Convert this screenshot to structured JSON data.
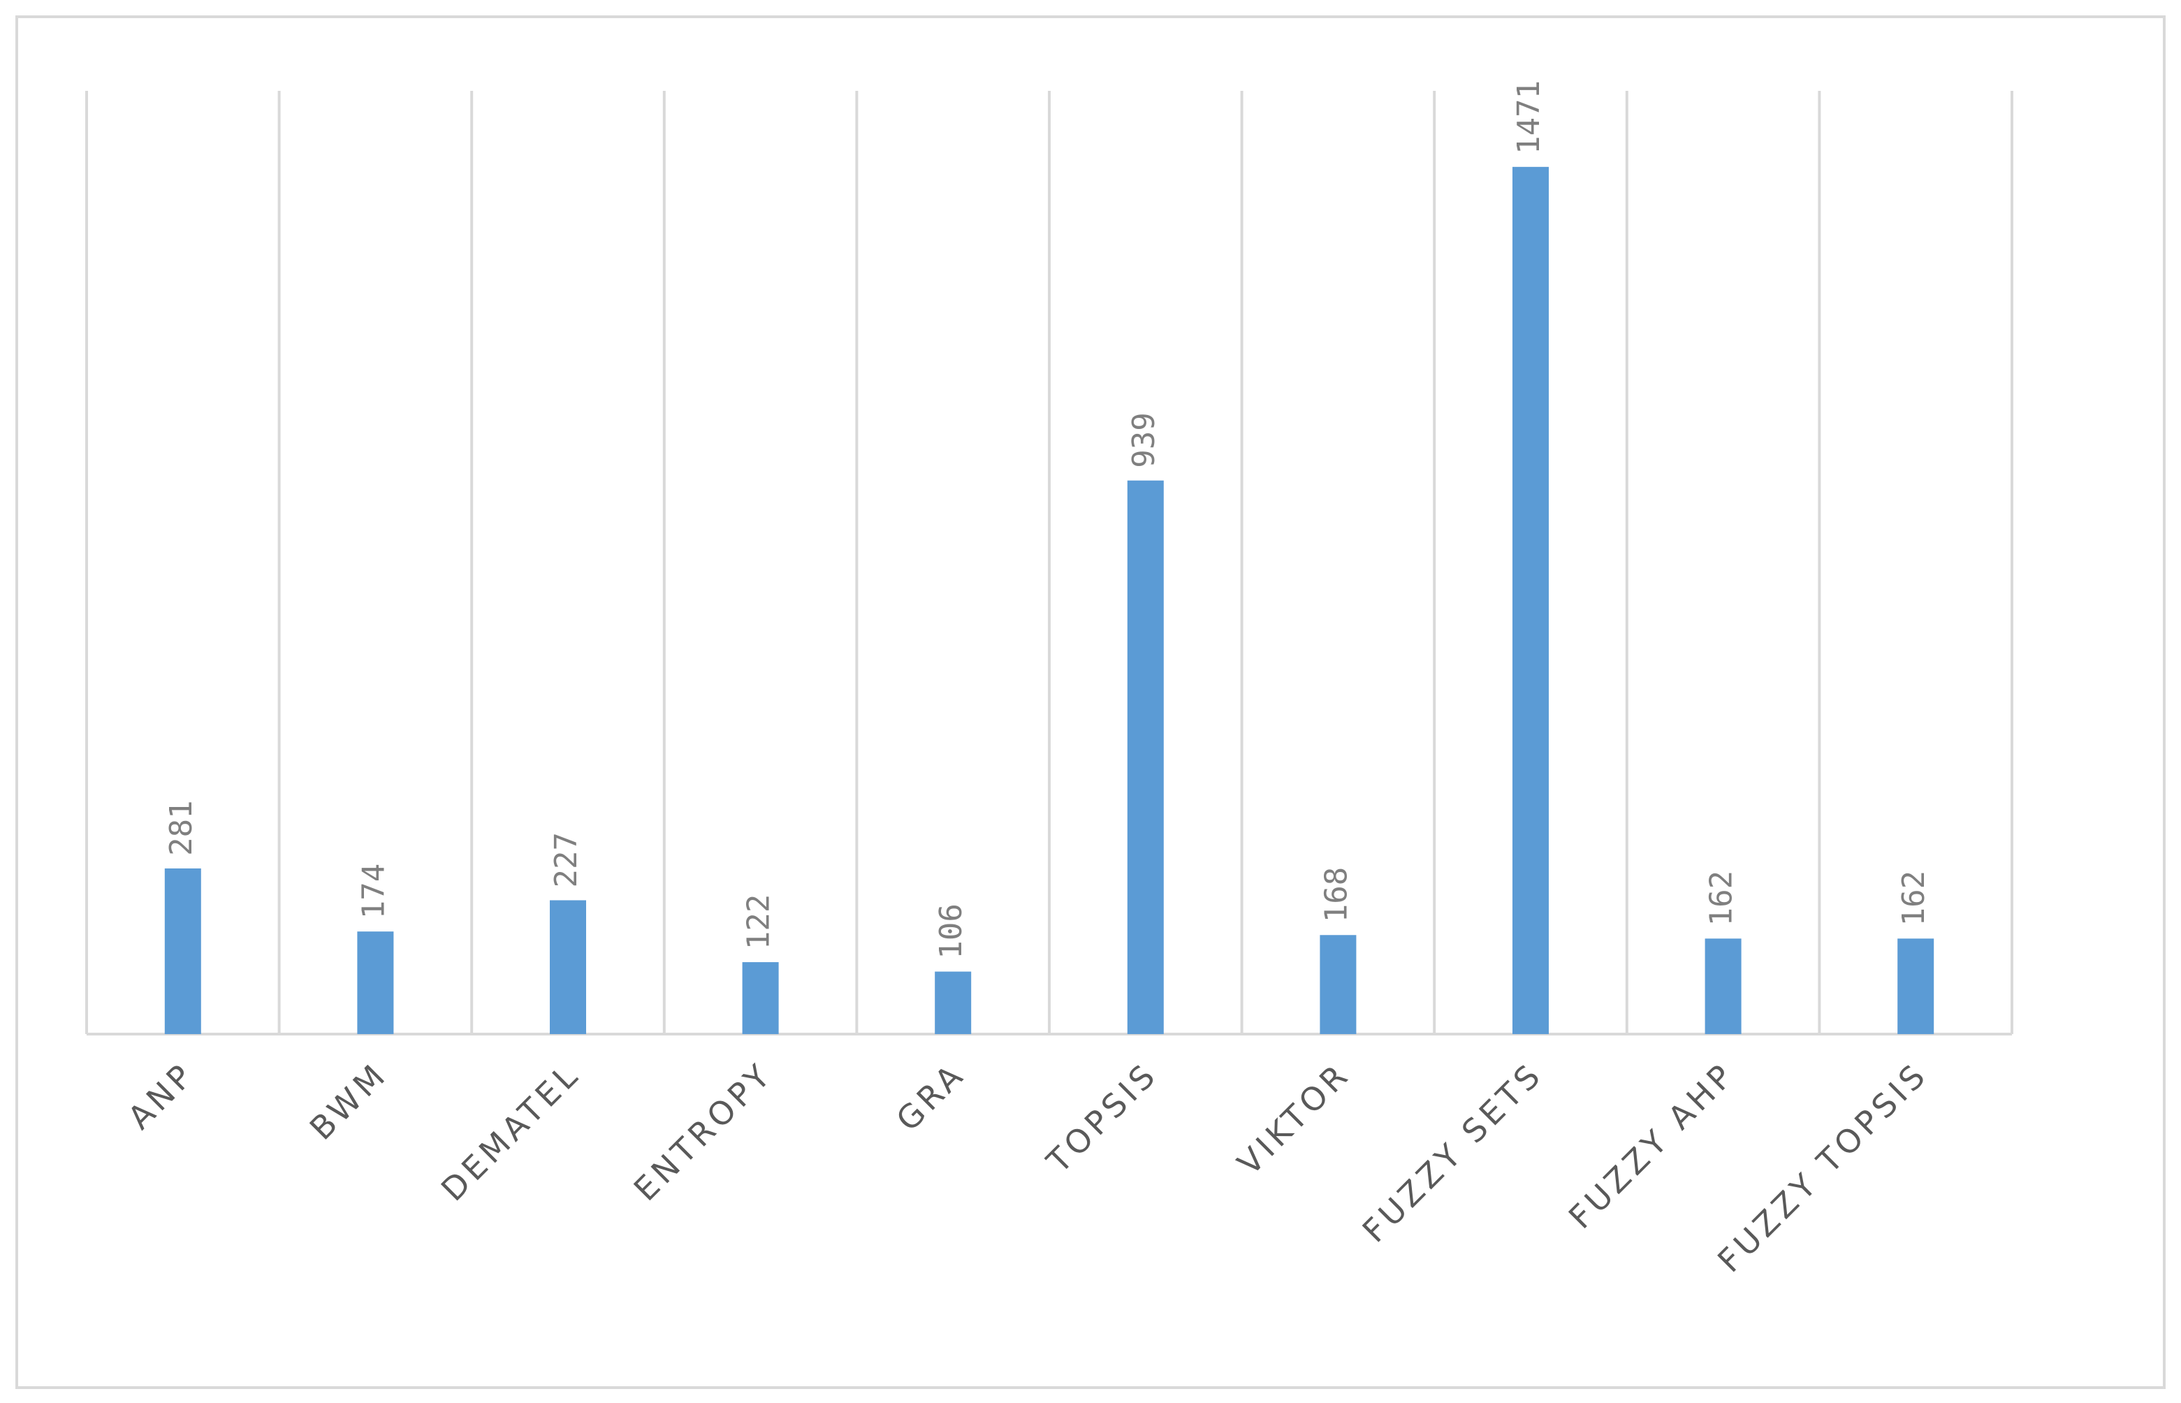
{
  "chart_data": {
    "type": "bar",
    "categories": [
      "ANP",
      "BWM",
      "DEMATEL",
      "ENTROPY",
      "GRA",
      "TOPSIS",
      "VIKTOR",
      "FUZZY SETS",
      "FUZZY AHP",
      "FUZZY TOPSIS"
    ],
    "values": [
      281,
      174,
      227,
      122,
      106,
      939,
      168,
      1471,
      162,
      162
    ],
    "color": "#5b9bd5",
    "ylim": [
      0,
      1600
    ]
  }
}
